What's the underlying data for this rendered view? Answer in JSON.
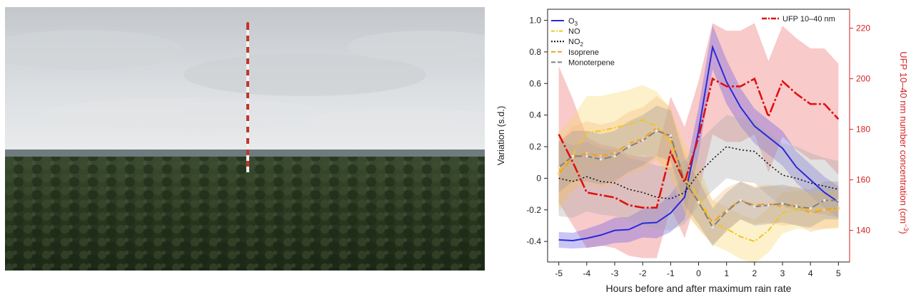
{
  "photo": {
    "description_icon": "amazon-forest-tower-photo",
    "colors": {
      "sky_top": "#c9cccf",
      "sky_bottom": "#e6e8ea",
      "horizon": "#5d6a6e",
      "forest": "#2b3a22",
      "forest_dark": "#1c2716",
      "tower_red": "#c0362c",
      "tower_white": "#f2f2f2"
    }
  },
  "chart_data": {
    "type": "line",
    "x": [
      -5,
      -4.5,
      -4,
      -3.5,
      -3,
      -2.5,
      -2,
      -1.5,
      -1,
      -0.5,
      0,
      0.5,
      1,
      1.5,
      2,
      2.5,
      3,
      3.5,
      4,
      4.5,
      5
    ],
    "xlabel": "Hours before and after maximum rain rate",
    "ylabel": "Variation (s.d.)",
    "y2label": "UFP 10–40 nm number concentration (cm",
    "y2label_sup": "−3",
    "y2label_close": ")",
    "xlim": [
      -5.4,
      5.4
    ],
    "ylim": [
      -0.53,
      1.07
    ],
    "y2lim": [
      127.5,
      227.5
    ],
    "xticks": [
      "-5",
      "-4",
      "-3",
      "-2",
      "-1",
      "0",
      "1",
      "2",
      "3",
      "4",
      "5"
    ],
    "xtick_values": [
      -5,
      -4,
      -3,
      -2,
      -1,
      0,
      1,
      2,
      3,
      4,
      5
    ],
    "yticks": [
      "1.0",
      "0.8",
      "0.6",
      "0.4",
      "0.2",
      "0",
      "-0.2",
      "-0.4"
    ],
    "ytick_values": [
      1.0,
      0.8,
      0.6,
      0.4,
      0.2,
      0,
      -0.2,
      -0.4
    ],
    "y2ticks": [
      "220",
      "200",
      "180",
      "160",
      "140"
    ],
    "y2tick_values": [
      220,
      200,
      180,
      160,
      140
    ],
    "grid": false,
    "legend_left": [
      "O",
      "NO",
      "NO",
      "Isoprene",
      "Monoterpene"
    ],
    "legend_left_sub": [
      "3",
      "",
      "2",
      "",
      ""
    ],
    "legend_right": "UFP 10–40 nm",
    "series": [
      {
        "name": "O3",
        "color": "#2a2ad8",
        "fill": "#6a5ae6",
        "dash": "",
        "values": [
          -0.39,
          -0.395,
          -0.38,
          -0.36,
          -0.33,
          -0.325,
          -0.285,
          -0.28,
          -0.22,
          -0.12,
          0.3,
          0.83,
          0.61,
          0.45,
          0.33,
          0.26,
          0.19,
          0.07,
          -0.01,
          -0.09,
          -0.15
        ],
        "band": [
          0.05,
          0.05,
          0.06,
          0.07,
          0.08,
          0.08,
          0.09,
          0.1,
          0.12,
          0.14,
          0.15,
          0.14,
          0.14,
          0.12,
          0.11,
          0.11,
          0.11,
          0.1,
          0.1,
          0.1,
          0.1
        ]
      },
      {
        "name": "NO",
        "color": "#f2c51c",
        "fill": "#f6d86a",
        "dash": "8,3,2,3",
        "values": [
          0.04,
          0.15,
          0.29,
          0.3,
          0.32,
          0.34,
          0.37,
          0.33,
          0.22,
          0.0,
          -0.12,
          -0.28,
          -0.32,
          -0.37,
          -0.4,
          -0.33,
          -0.22,
          -0.2,
          -0.2,
          -0.2,
          -0.2
        ],
        "band": [
          0.25,
          0.24,
          0.23,
          0.22,
          0.22,
          0.22,
          0.22,
          0.22,
          0.22,
          0.22,
          0.2,
          0.14,
          0.14,
          0.14,
          0.14,
          0.14,
          0.13,
          0.12,
          0.12,
          0.12,
          0.12
        ]
      },
      {
        "name": "NO2",
        "color": "#111111",
        "fill": "#a9a9a9",
        "dash": "2,3",
        "values": [
          0.0,
          -0.02,
          0.01,
          -0.02,
          -0.03,
          -0.07,
          -0.09,
          -0.12,
          -0.13,
          -0.09,
          0.03,
          0.12,
          0.2,
          0.18,
          0.17,
          0.09,
          0.02,
          0.0,
          -0.03,
          -0.05,
          -0.07
        ],
        "band": [
          0.24,
          0.23,
          0.22,
          0.21,
          0.21,
          0.2,
          0.2,
          0.2,
          0.2,
          0.2,
          0.2,
          0.2,
          0.2,
          0.2,
          0.2,
          0.2,
          0.2,
          0.2,
          0.19,
          0.18,
          0.18
        ]
      },
      {
        "name": "Isoprene",
        "color": "#f0a020",
        "fill": "#f5b97a",
        "dash": "10,4",
        "values": [
          0.03,
          0.13,
          0.16,
          0.14,
          0.16,
          0.22,
          0.25,
          0.32,
          0.25,
          -0.02,
          -0.16,
          -0.28,
          -0.2,
          -0.14,
          -0.17,
          -0.16,
          -0.18,
          -0.17,
          -0.22,
          -0.2,
          -0.19
        ],
        "band": [
          0.2,
          0.2,
          0.2,
          0.2,
          0.2,
          0.2,
          0.2,
          0.2,
          0.2,
          0.18,
          0.16,
          0.14,
          0.14,
          0.12,
          0.12,
          0.12,
          0.12,
          0.12,
          0.12,
          0.12,
          0.12
        ]
      },
      {
        "name": "Monoterpene",
        "color": "#808080",
        "fill": "#9a9a9a",
        "dash": "10,4",
        "values": [
          0.07,
          0.14,
          0.14,
          0.12,
          0.14,
          0.2,
          0.24,
          0.3,
          0.27,
          -0.02,
          -0.15,
          -0.31,
          -0.21,
          -0.14,
          -0.18,
          -0.17,
          -0.16,
          -0.18,
          -0.19,
          -0.14,
          -0.14
        ],
        "band": [
          0.16,
          0.16,
          0.16,
          0.16,
          0.16,
          0.16,
          0.16,
          0.16,
          0.16,
          0.15,
          0.14,
          0.12,
          0.12,
          0.12,
          0.12,
          0.12,
          0.12,
          0.12,
          0.12,
          0.12,
          0.12
        ]
      }
    ],
    "ufp_series": {
      "name": "UFP 10–40 nm",
      "color": "#e01010",
      "fill": "#f08a8a",
      "dash": "14,3,3,3",
      "axis": "right",
      "values": [
        178,
        167,
        155,
        154,
        153,
        150,
        149,
        149,
        171,
        159,
        177,
        200,
        197,
        197,
        200,
        185,
        199,
        194,
        190,
        190,
        184
      ],
      "band": [
        27,
        25,
        22,
        20,
        20,
        20,
        20,
        20,
        22,
        22,
        22,
        22,
        22,
        22,
        22,
        22,
        22,
        22,
        22,
        22,
        22
      ]
    }
  }
}
